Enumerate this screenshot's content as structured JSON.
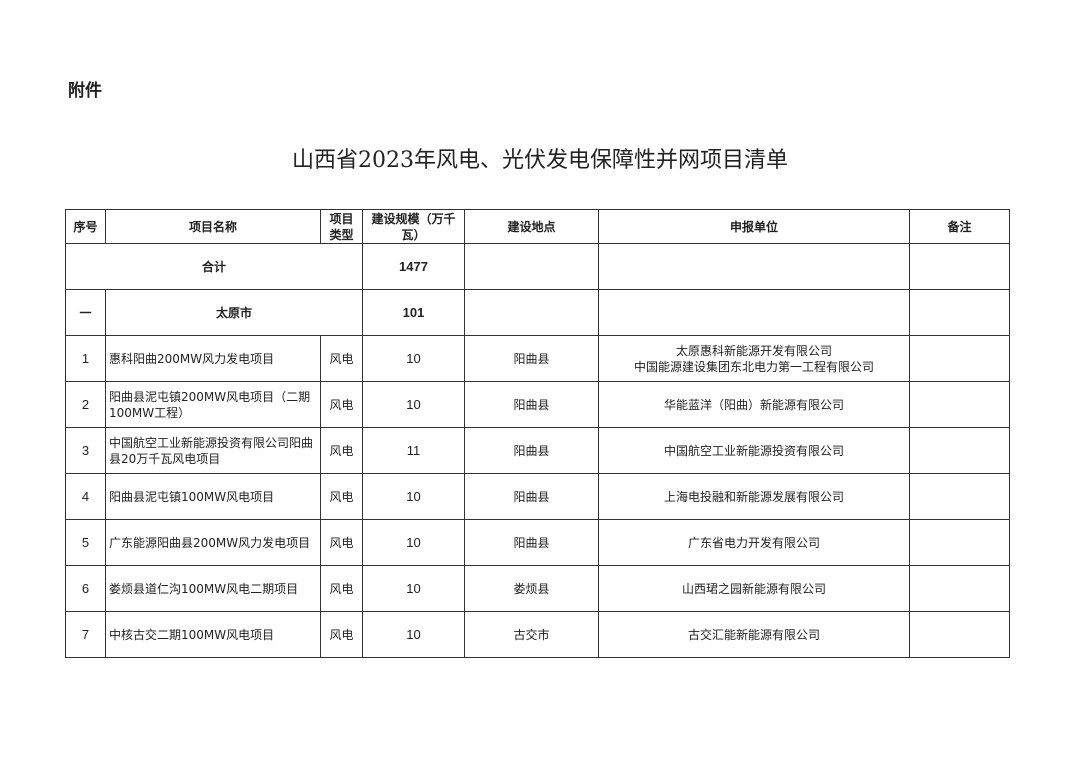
{
  "doc": {
    "attachment_label": "附件",
    "title": "山西省2023年风电、光伏发电保障性并网项目清单"
  },
  "table": {
    "headers": {
      "seq": "序号",
      "name": "项目名称",
      "type": "项目类型",
      "scale": "建设规模（万千瓦）",
      "location": "建设地点",
      "applicant": "申报单位",
      "remarks": "备注"
    },
    "total": {
      "label": "合计",
      "scale": "1477"
    },
    "group": {
      "seq": "一",
      "label": "太原市",
      "scale": "101"
    },
    "rows": [
      {
        "seq": "1",
        "name": "惠科阳曲200MW风力发电项目",
        "type": "风电",
        "scale": "10",
        "location": "阳曲县",
        "applicant": "太原惠科新能源开发有限公司\n中国能源建设集团东北电力第一工程有限公司",
        "remarks": ""
      },
      {
        "seq": "2",
        "name": "阳曲县泥屯镇200MW风电项目（二期100MW工程）",
        "type": "风电",
        "scale": "10",
        "location": "阳曲县",
        "applicant": "华能蓝洋（阳曲）新能源有限公司",
        "remarks": ""
      },
      {
        "seq": "3",
        "name": "中国航空工业新能源投资有限公司阳曲县20万千瓦风电项目",
        "type": "风电",
        "scale": "11",
        "location": "阳曲县",
        "applicant": "中国航空工业新能源投资有限公司",
        "remarks": ""
      },
      {
        "seq": "4",
        "name": "阳曲县泥屯镇100MW风电项目",
        "type": "风电",
        "scale": "10",
        "location": "阳曲县",
        "applicant": "上海电投融和新能源发展有限公司",
        "remarks": ""
      },
      {
        "seq": "5",
        "name": "广东能源阳曲县200MW风力发电项目",
        "type": "风电",
        "scale": "10",
        "location": "阳曲县",
        "applicant": "广东省电力开发有限公司",
        "remarks": ""
      },
      {
        "seq": "6",
        "name": "娄烦县道仁沟100MW风电二期项目",
        "type": "风电",
        "scale": "10",
        "location": "娄烦县",
        "applicant": "山西珺之园新能源有限公司",
        "remarks": ""
      },
      {
        "seq": "7",
        "name": "中核古交二期100MW风电项目",
        "type": "风电",
        "scale": "10",
        "location": "古交市",
        "applicant": "古交汇能新能源有限公司",
        "remarks": ""
      }
    ]
  }
}
